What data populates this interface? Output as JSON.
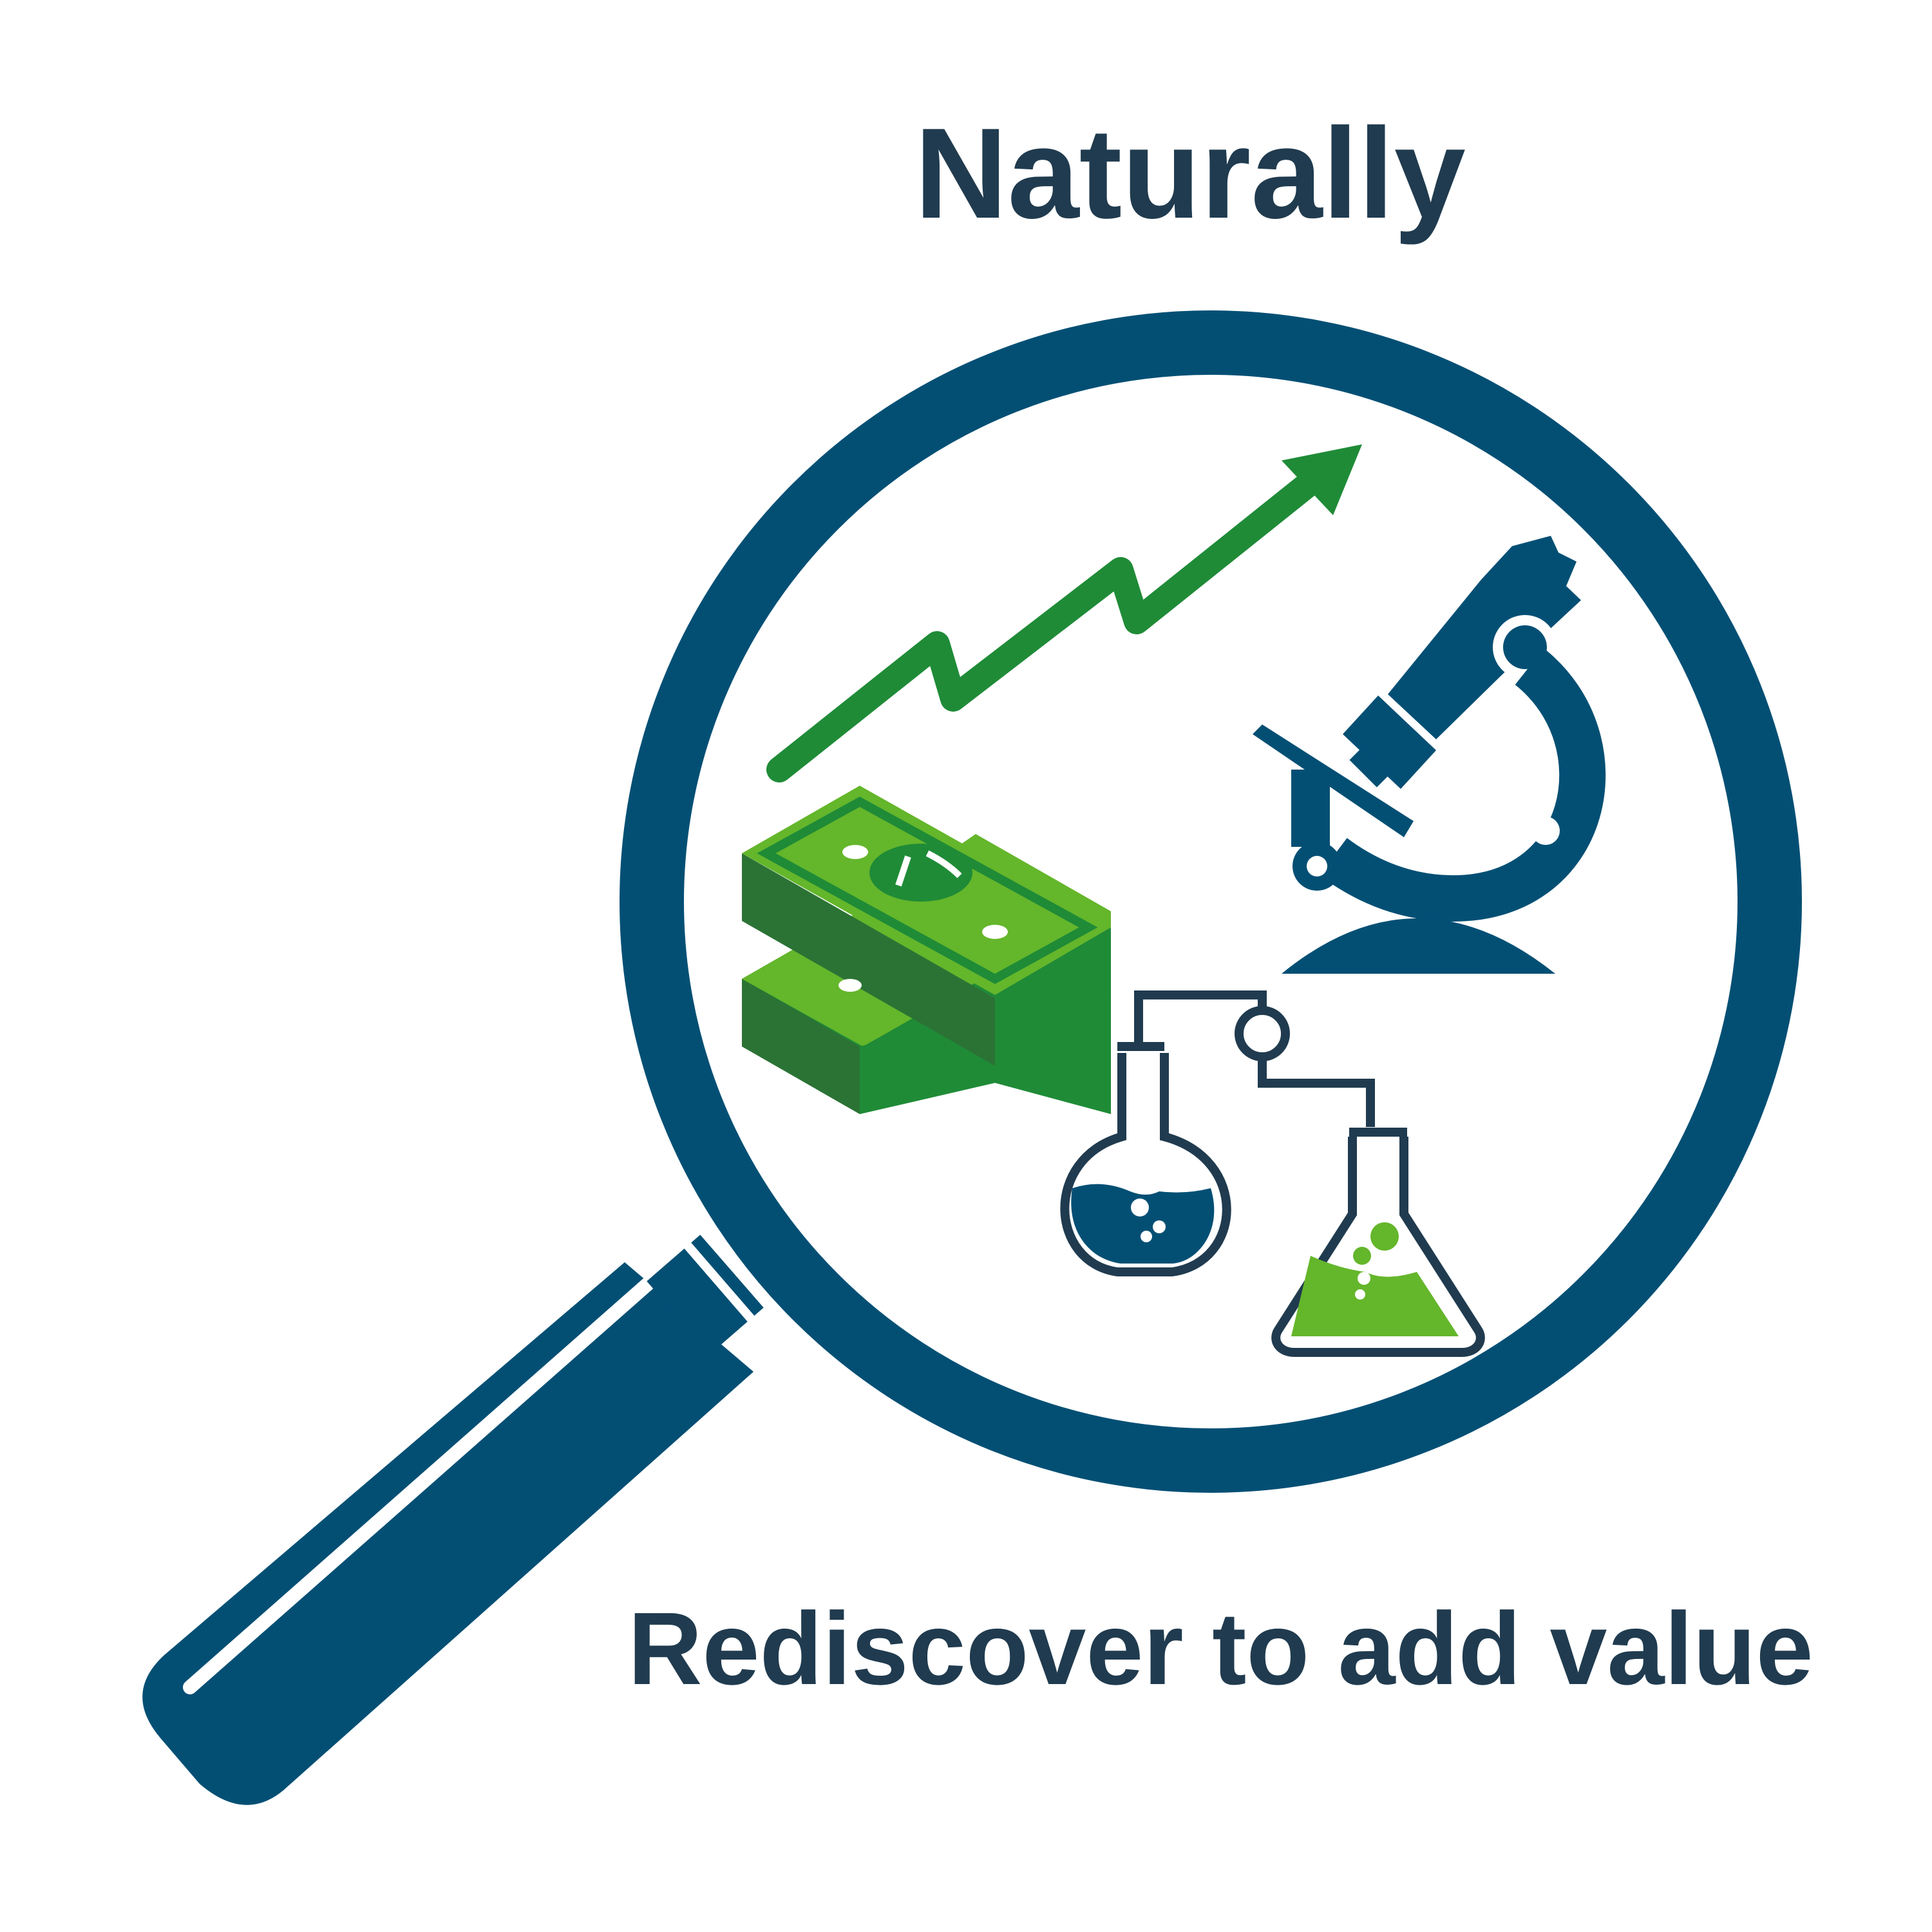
{
  "title": "Naturally",
  "tagline": "Rediscover to add value",
  "colors": {
    "navy": "#034f74",
    "text": "#203b4f",
    "green_dark": "#1f8b37",
    "green_light": "#64b62b",
    "green_shadow": "#2b7335",
    "white": "#ffffff"
  },
  "icons": [
    "magnifying-glass-icon",
    "growth-arrow-icon",
    "money-stack-icon",
    "microscope-icon",
    "round-flask-icon",
    "erlenmeyer-flask-icon"
  ]
}
